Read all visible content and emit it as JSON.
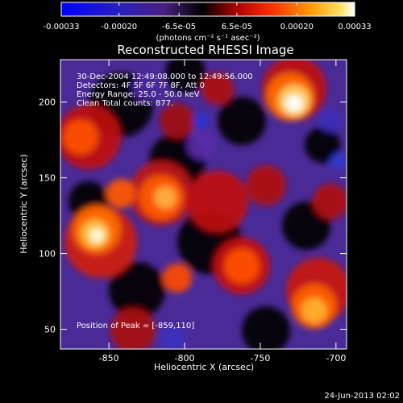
{
  "colorbar": {
    "tick_labels": [
      "-0.00033",
      "-0.00020",
      "-6.5e-05",
      "6.5e-05",
      "0.00020",
      "0.00033"
    ],
    "tick_values": [
      -0.00033,
      -0.0002,
      -6.5e-05,
      6.5e-05,
      0.0002,
      0.00033
    ],
    "range": [
      -0.00033,
      0.00033
    ],
    "unit_label": "(photons cm⁻² s⁻¹ asec⁻²)",
    "colors": [
      "#0000ff",
      "#3a1aa0",
      "#000000",
      "#cc0000",
      "#ff8c00",
      "#ffffff"
    ]
  },
  "chart_data": {
    "type": "heatmap",
    "title": "Reconstructed RHESSI Image",
    "xlabel": "Heliocentric X (arcsec)",
    "ylabel": "Heliocentric Y (arcsec)",
    "xlim": [
      -882,
      -693
    ],
    "ylim": [
      37,
      228
    ],
    "x_ticks": [
      -850,
      -800,
      -750,
      -700
    ],
    "y_ticks": [
      50,
      100,
      150,
      200
    ],
    "info_lines": [
      "30-Dec-2004 12:49:08.000 to 12:49:56.000",
      "Detectors: 4F 5F 6F 7F 8F, Att 0",
      "Energy Range: 25.0 - 50.0 keV",
      "Clean     Total counts: 877."
    ],
    "peak_text": "Position of Peak = [-859,110]",
    "peak_position": [
      -859,
      110
    ],
    "energy_range_kev": [
      25.0,
      50.0
    ],
    "detectors": [
      "4F",
      "5F",
      "6F",
      "7F",
      "8F"
    ],
    "total_counts": 877
  },
  "footer": {
    "timestamp": "24-Jun-2013 02:02"
  }
}
